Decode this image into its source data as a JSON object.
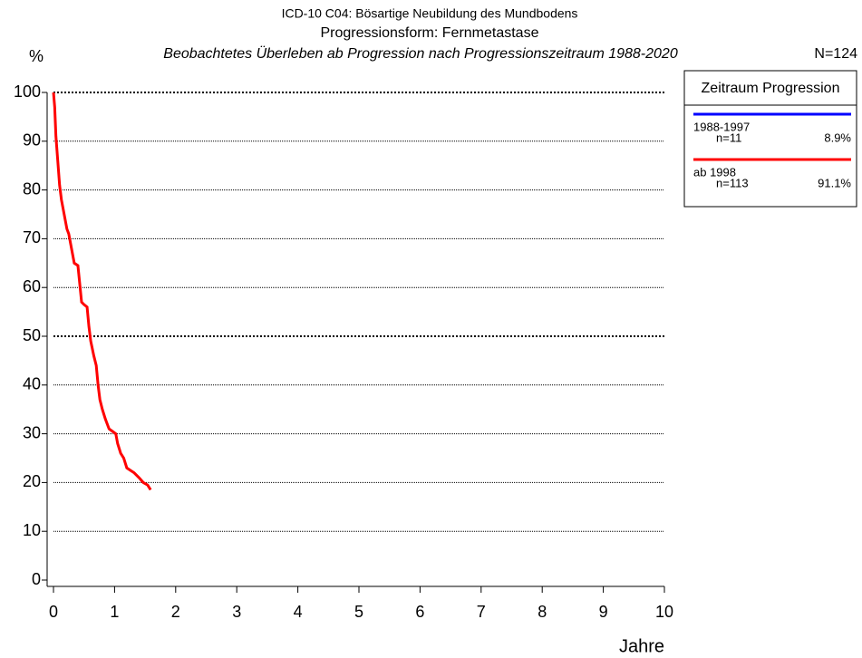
{
  "chart_data": {
    "type": "line",
    "title": "ICD-10 C04: Bösartige Neubildung des Mundbodens",
    "subtitle": "Progressionsform: Fernmetastase",
    "caption": "Beobachtetes Überleben ab Progression nach Progressionszeitraum 1988-2020",
    "y_label": "%",
    "x_label": "Jahre",
    "total": "N=124",
    "legend_title": "Zeitraum Progression",
    "series": [
      {
        "name": "1988-1997",
        "color": "#0000ff",
        "n_label": "n=11",
        "share_label": "8.9%",
        "x": [],
        "values": []
      },
      {
        "name": "ab 1998",
        "color": "#ff0000",
        "n_label": "n=113",
        "share_label": "91.1%",
        "x": [
          0,
          0.02,
          0.04,
          0.07,
          0.1,
          0.13,
          0.16,
          0.19,
          0.22,
          0.25,
          0.28,
          0.31,
          0.34,
          0.4,
          0.46,
          0.5,
          0.55,
          0.58,
          0.61,
          0.66,
          0.7,
          0.73,
          0.76,
          0.8,
          0.85,
          0.91,
          1.02,
          1.05,
          1.1,
          1.15,
          1.2,
          1.26,
          1.32,
          1.4,
          1.47,
          1.54,
          1.59
        ],
        "values": [
          100,
          97,
          91,
          86,
          81,
          78,
          76,
          74,
          72,
          71,
          69,
          67,
          65,
          64.5,
          57,
          56.5,
          56,
          52,
          49,
          46,
          44,
          40,
          37,
          35,
          33,
          31,
          30,
          28,
          26,
          25,
          23,
          22.5,
          22,
          21,
          20,
          19.5,
          18.5
        ]
      }
    ],
    "xlim": [
      0,
      10
    ],
    "xticks": [
      0,
      1,
      2,
      3,
      4,
      5,
      6,
      7,
      8,
      9,
      10
    ],
    "ylim": [
      0,
      100
    ],
    "yticks": [
      0,
      10,
      20,
      30,
      40,
      50,
      60,
      70,
      80,
      90,
      100
    ],
    "grid": true
  }
}
